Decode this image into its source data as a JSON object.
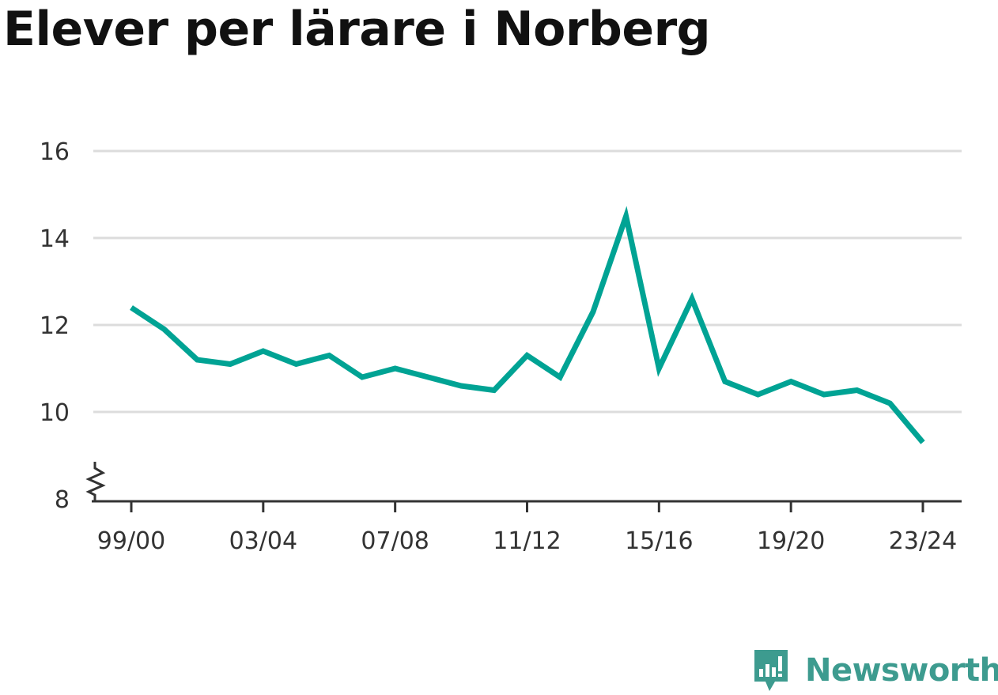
{
  "chart_data": {
    "type": "line",
    "title": "Elever per lärare i Norberg",
    "x": [
      "99/00",
      "00/01",
      "01/02",
      "02/03",
      "03/04",
      "04/05",
      "05/06",
      "06/07",
      "07/08",
      "08/09",
      "09/10",
      "10/11",
      "11/12",
      "12/13",
      "13/14",
      "14/15",
      "15/16",
      "16/17",
      "17/18",
      "18/19",
      "19/20",
      "20/21",
      "21/22",
      "22/23",
      "23/24"
    ],
    "x_tick_labels": [
      "99/00",
      "03/04",
      "07/08",
      "11/12",
      "15/16",
      "19/20",
      "23/24"
    ],
    "series": [
      {
        "values": [
          12.4,
          11.9,
          11.2,
          11.1,
          11.4,
          11.1,
          11.3,
          10.8,
          11.0,
          10.8,
          10.6,
          10.5,
          11.3,
          10.8,
          12.3,
          14.5,
          11.0,
          12.6,
          10.7,
          10.4,
          10.7,
          10.4,
          10.5,
          10.2,
          9.3
        ],
        "color": "#00a394"
      }
    ],
    "y_ticks": [
      8,
      10,
      12,
      14,
      16
    ],
    "ylim": [
      8,
      16
    ],
    "y_axis_break": true,
    "grid": true,
    "xlabel": "",
    "ylabel": ""
  },
  "brand": {
    "name": "Newsworthy",
    "logo_icon": "newsworthy-logo-icon",
    "color": "#3d9b8f"
  }
}
